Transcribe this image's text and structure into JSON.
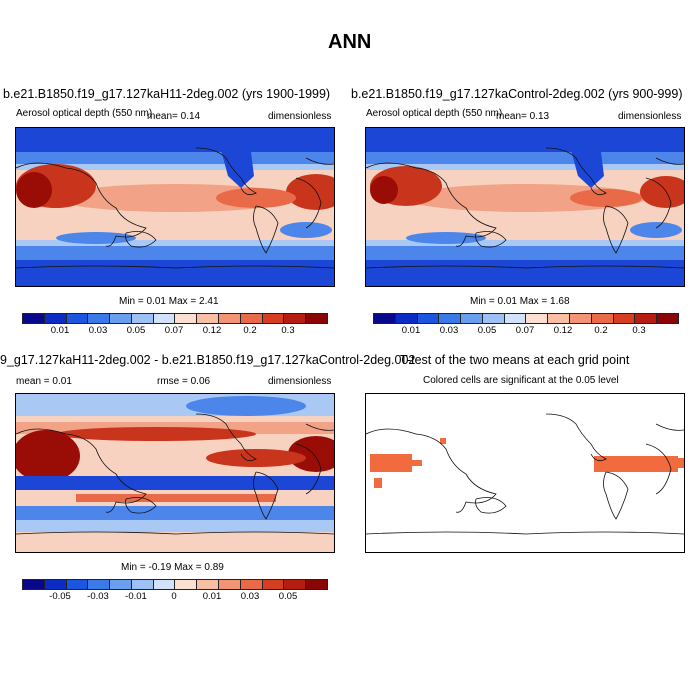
{
  "figure_title": "ANN",
  "panels": {
    "test": {
      "title": "b.e21.B1850.f19_g17.127kaH11-2deg.002 (yrs 1900-1999)",
      "variable": "Aerosol optical depth (550 nm)",
      "mean_label": "mean=  0.14",
      "units": "dimensionless",
      "minmax": "Min =  0.01 Max =  2.41"
    },
    "control": {
      "title": "b.e21.B1850.f19_g17.127kaControl-2deg.002 (yrs 900-999)",
      "variable": "Aerosol optical depth (550 nm)",
      "mean_label": "mean=  0.13",
      "units": "dimensionless",
      "minmax": "Min =  0.01 Max =  1.68"
    },
    "diff": {
      "title": "9_g17.127kaH11-2deg.002 - b.e21.B1850.f19_g17.127kaControl-2deg.002",
      "mean_label": "mean =  0.01",
      "rmse_label": "rmse =  0.06",
      "units": "dimensionless",
      "minmax": "Min =  -0.19 Max =  0.89"
    },
    "ttest": {
      "title": "T-test of the two means at each grid point",
      "subtitle": "Colored cells are significant at the 0.05 level"
    }
  },
  "colorbar_abs": {
    "colors": [
      "#08088c",
      "#0b2cc4",
      "#1b55e0",
      "#3a7ae8",
      "#6a9ff0",
      "#9ec1f5",
      "#d2e2fa",
      "#fbe0d2",
      "#f8bfa4",
      "#f39474",
      "#e96a48",
      "#d63e22",
      "#b51d10",
      "#8a0606"
    ],
    "labels": [
      "0.01",
      "0.03",
      "0.05",
      "0.07",
      "0.12",
      "0.2",
      "0.3"
    ]
  },
  "colorbar_diff": {
    "colors": [
      "#08088c",
      "#0b2cc4",
      "#1b55e0",
      "#3a7ae8",
      "#6a9ff0",
      "#9ec1f5",
      "#d2e2fa",
      "#fbe0d2",
      "#f8bfa4",
      "#f39474",
      "#e96a48",
      "#d63e22",
      "#b51d10",
      "#8a0606"
    ],
    "labels": [
      "-0.05",
      "-0.03",
      "-0.01",
      "0",
      "0.01",
      "0.03",
      "0.05"
    ]
  },
  "map_colors": {
    "deep_blue": "#1b46d6",
    "mid_blue": "#4d86ea",
    "light_blue": "#a9c8f4",
    "pale": "#f7d2c0",
    "salmon": "#f2a286",
    "orange": "#e96a48",
    "red": "#c9351c",
    "dark_red": "#9a0d06",
    "signif": "#f26b3e"
  }
}
